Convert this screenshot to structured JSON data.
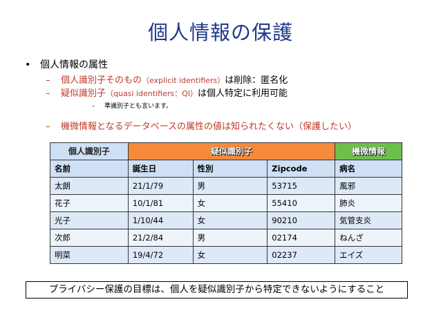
{
  "title": "個人情報の保護",
  "bullet": "•",
  "bullet_text": "個人情報の属性",
  "dash": "–",
  "sub1": {
    "red_text": "個人識別子そのもの",
    "paren_text": "（explicit identifiers）",
    "rest_text": "は削除：匿名化"
  },
  "sub2": {
    "red_text": "疑似識別子",
    "paren_text": "（quasi identifiers：QI）",
    "rest_text": "は個人特定に利用可能"
  },
  "sub3": {
    "text": "準識別子とも言います。"
  },
  "sub4": {
    "text": "機微情報となるデータベースの属性の値は知られたくない（保護したい）"
  },
  "table": {
    "categories": {
      "identifier": "個人識別子",
      "quasi": "疑似識別子",
      "sensitive": "機微情報"
    },
    "columns": [
      "名前",
      "誕生日",
      "性別",
      "Zipcode",
      "病名"
    ],
    "rows": [
      [
        "太朗",
        "21/1/79",
        "男",
        "53715",
        "風邪"
      ],
      [
        "花子",
        "10/1/81",
        "女",
        "55410",
        "肺炎"
      ],
      [
        "光子",
        "1/10/44",
        "女",
        "90210",
        "気管支炎"
      ],
      [
        "次郎",
        "21/2/84",
        "男",
        "02174",
        "ねんざ"
      ],
      [
        "明菜",
        "19/4/72",
        "女",
        "02237",
        "エイズ"
      ]
    ]
  },
  "footer": "プライバシー保護の目標は、個人を疑似識別子から特定できないようにすること",
  "colors": {
    "title": "#1f3a8a",
    "red": "#c0392b",
    "quasi_header": "#f58a3c",
    "sensitive_header": "#6cc04a",
    "row_blue": "#dde9f6"
  }
}
